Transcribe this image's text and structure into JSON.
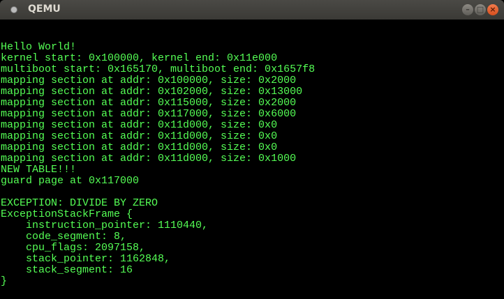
{
  "window": {
    "title": "QEMU",
    "buttons": {
      "minimize": "–",
      "maximize": "□",
      "close": "×"
    }
  },
  "colors": {
    "text": "#55ff55",
    "background": "#000000",
    "titlebar": "#3c3b37",
    "close_button": "#e9602f"
  },
  "console": {
    "lines": [
      "Hello World!",
      "kernel start: 0x100000, kernel end: 0x11e000",
      "multiboot start: 0x165170, multiboot end: 0x1657f8",
      "mapping section at addr: 0x100000, size: 0x2000",
      "mapping section at addr: 0x102000, size: 0x13000",
      "mapping section at addr: 0x115000, size: 0x2000",
      "mapping section at addr: 0x117000, size: 0x6000",
      "mapping section at addr: 0x11d000, size: 0x0",
      "mapping section at addr: 0x11d000, size: 0x0",
      "mapping section at addr: 0x11d000, size: 0x0",
      "mapping section at addr: 0x11d000, size: 0x1000",
      "NEW TABLE!!!",
      "guard page at 0x117000",
      "",
      "EXCEPTION: DIVIDE BY ZERO",
      "ExceptionStackFrame {",
      "    instruction_pointer: 1110440,",
      "    code_segment: 8,",
      "    cpu_flags: 2097158,",
      "    stack_pointer: 1162848,",
      "    stack_segment: 16",
      "}"
    ]
  }
}
